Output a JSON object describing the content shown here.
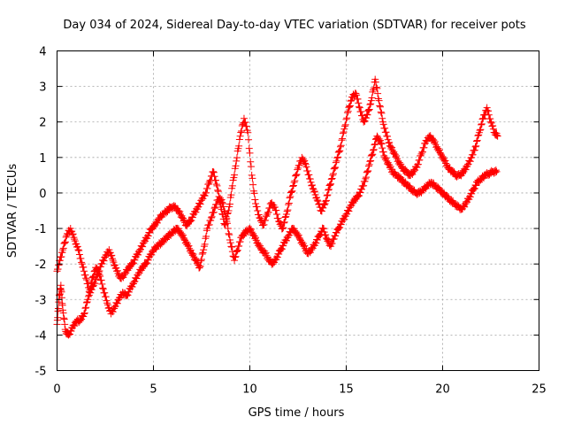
{
  "chart_data": {
    "type": "scatter",
    "title": "Day 034 of 2024, Sidereal Day-to-day VTEC variation (SDTVAR) for receiver pots",
    "xlabel": "GPS time / hours",
    "ylabel": "SDTVAR / TECUs",
    "xlim": [
      0,
      25
    ],
    "ylim": [
      -5,
      4
    ],
    "x_ticks": [
      0,
      5,
      10,
      15,
      20,
      25
    ],
    "y_ticks": [
      -5,
      -4,
      -3,
      -2,
      -1,
      0,
      1,
      2,
      3,
      4
    ],
    "x_tick_labels": [
      "0",
      "5",
      "10",
      "15",
      "20",
      "25"
    ],
    "y_tick_labels": [
      "-5",
      "-4",
      "-3",
      "-2",
      "-1",
      "0",
      "1",
      "2",
      "3",
      "4"
    ],
    "grid": true,
    "marker": "+",
    "color": "#ff0000",
    "series": [
      {
        "name": "pots",
        "x": [
          0.0,
          0.1,
          0.2,
          0.3,
          0.45,
          0.6,
          0.8,
          1.0,
          1.2,
          1.4,
          1.6,
          1.8,
          2.0,
          2.2,
          2.4,
          2.6,
          2.8,
          3.0,
          3.2,
          3.4,
          3.6,
          3.8,
          4.0,
          4.2,
          4.4,
          4.6,
          4.8,
          5.0,
          5.2,
          5.4,
          5.6,
          5.8,
          6.0,
          6.2,
          6.4,
          6.6,
          6.8,
          7.0,
          7.2,
          7.4,
          7.6,
          7.8,
          8.0,
          8.2,
          8.4,
          8.6,
          8.8,
          9.0,
          9.2,
          9.4,
          9.6,
          9.8,
          10.0,
          10.2,
          10.4,
          10.6,
          10.8,
          11.0,
          11.2,
          11.4,
          11.6,
          11.8,
          12.0,
          12.2,
          12.4,
          12.6,
          12.8,
          13.0,
          13.2,
          13.4,
          13.6,
          13.8,
          14.0,
          14.2,
          14.4,
          14.6,
          14.8,
          15.0,
          15.2,
          15.4,
          15.6,
          15.8,
          16.0,
          16.2,
          16.4,
          16.6,
          16.8,
          17.0,
          17.2,
          17.4,
          17.6,
          17.8,
          18.0,
          18.2,
          18.4,
          18.6,
          18.8,
          19.0,
          19.2,
          19.4,
          19.6,
          19.8,
          20.0,
          20.2,
          20.4,
          20.6,
          20.8,
          21.0,
          21.2,
          21.4,
          21.6,
          21.8,
          22.0,
          22.2,
          22.4,
          22.6,
          22.8
        ],
        "y": [
          -3.7,
          -3.0,
          -2.6,
          -3.3,
          -3.9,
          -4.0,
          -3.8,
          -3.6,
          -3.6,
          -3.4,
          -3.0,
          -2.5,
          -2.1,
          -2.3,
          -2.7,
          -3.1,
          -3.4,
          -3.2,
          -3.0,
          -2.8,
          -2.9,
          -2.7,
          -2.5,
          -2.3,
          -2.1,
          -2.0,
          -1.8,
          -1.6,
          -1.5,
          -1.4,
          -1.3,
          -1.2,
          -1.1,
          -1.0,
          -1.1,
          -1.3,
          -1.5,
          -1.7,
          -1.9,
          -2.1,
          -1.6,
          -1.0,
          -0.7,
          -0.4,
          -0.1,
          -0.3,
          -0.8,
          -1.4,
          -1.9,
          -1.5,
          -1.2,
          -1.1,
          -1.0,
          -1.2,
          -1.4,
          -1.6,
          -1.7,
          -1.9,
          -2.0,
          -1.8,
          -1.6,
          -1.4,
          -1.2,
          -1.0,
          -1.1,
          -1.3,
          -1.5,
          -1.7,
          -1.6,
          -1.4,
          -1.2,
          -1.0,
          -1.3,
          -1.5,
          -1.2,
          -1.0,
          -0.8,
          -0.6,
          -0.4,
          -0.2,
          -0.1,
          0.1,
          0.4,
          0.8,
          1.2,
          1.6,
          1.4,
          1.0,
          0.8,
          0.6,
          0.5,
          0.4,
          0.3,
          0.2,
          0.1,
          0.0,
          0.0,
          0.1,
          0.2,
          0.3,
          0.2,
          0.1,
          0.0,
          -0.1,
          -0.2,
          -0.3,
          -0.4,
          -0.45,
          -0.3,
          -0.1,
          0.1,
          0.3,
          0.4,
          0.5,
          0.55,
          0.6,
          0.6
        ]
      },
      {
        "name": "pots",
        "x": [
          0.0,
          0.15,
          0.3,
          0.5,
          0.7,
          0.9,
          1.1,
          1.3,
          1.5,
          1.7,
          1.9,
          2.1,
          2.3,
          2.5,
          2.7,
          2.9,
          3.1,
          3.3,
          3.5,
          3.7,
          3.9,
          4.1,
          4.3,
          4.5,
          4.7,
          4.9,
          5.1,
          5.3,
          5.5,
          5.7,
          5.9,
          6.1,
          6.3,
          6.5,
          6.7,
          6.9,
          7.1,
          7.3,
          7.5,
          7.7,
          7.9,
          8.1,
          8.3,
          8.5,
          8.7,
          8.9,
          9.1,
          9.3,
          9.5,
          9.7,
          9.9,
          10.1,
          10.3,
          10.5,
          10.7,
          10.9,
          11.1,
          11.3,
          11.5,
          11.7,
          11.9,
          12.1,
          12.3,
          12.5,
          12.7,
          12.9,
          13.1,
          13.3,
          13.5,
          13.7,
          13.9,
          14.1,
          14.3,
          14.5,
          14.7,
          14.9,
          15.1,
          15.3,
          15.5,
          15.7,
          15.9,
          16.1,
          16.3,
          16.5,
          16.7,
          16.9,
          17.1,
          17.3,
          17.5,
          17.7,
          17.9,
          18.1,
          18.3,
          18.5,
          18.7,
          18.9,
          19.1,
          19.3,
          19.5,
          19.7,
          19.9,
          20.1,
          20.3,
          20.5,
          20.7,
          20.9,
          21.1,
          21.3,
          21.5,
          21.7,
          21.9,
          22.1,
          22.3,
          22.5,
          22.7,
          22.85
        ],
        "y": [
          -2.2,
          -1.9,
          -1.6,
          -1.2,
          -1.0,
          -1.3,
          -1.6,
          -2.0,
          -2.4,
          -2.8,
          -2.6,
          -2.3,
          -2.0,
          -1.8,
          -1.6,
          -1.9,
          -2.2,
          -2.4,
          -2.3,
          -2.1,
          -2.0,
          -1.8,
          -1.6,
          -1.4,
          -1.2,
          -1.0,
          -0.9,
          -0.7,
          -0.6,
          -0.5,
          -0.4,
          -0.4,
          -0.5,
          -0.7,
          -0.9,
          -0.8,
          -0.6,
          -0.4,
          -0.2,
          0.0,
          0.3,
          0.6,
          0.2,
          -0.4,
          -0.9,
          -0.5,
          0.2,
          0.9,
          1.6,
          2.1,
          1.7,
          0.5,
          -0.3,
          -0.7,
          -0.9,
          -0.6,
          -0.3,
          -0.4,
          -0.8,
          -1.0,
          -0.6,
          -0.1,
          0.3,
          0.7,
          1.0,
          0.8,
          0.4,
          0.1,
          -0.2,
          -0.5,
          -0.3,
          0.1,
          0.5,
          0.9,
          1.3,
          1.8,
          2.3,
          2.7,
          2.8,
          2.4,
          2.0,
          2.2,
          2.6,
          3.2,
          2.6,
          2.0,
          1.6,
          1.3,
          1.1,
          0.9,
          0.7,
          0.6,
          0.5,
          0.6,
          0.8,
          1.1,
          1.4,
          1.6,
          1.5,
          1.3,
          1.1,
          0.9,
          0.7,
          0.6,
          0.5,
          0.5,
          0.6,
          0.8,
          1.0,
          1.3,
          1.7,
          2.1,
          2.4,
          2.0,
          1.7,
          1.6
        ]
      }
    ]
  }
}
